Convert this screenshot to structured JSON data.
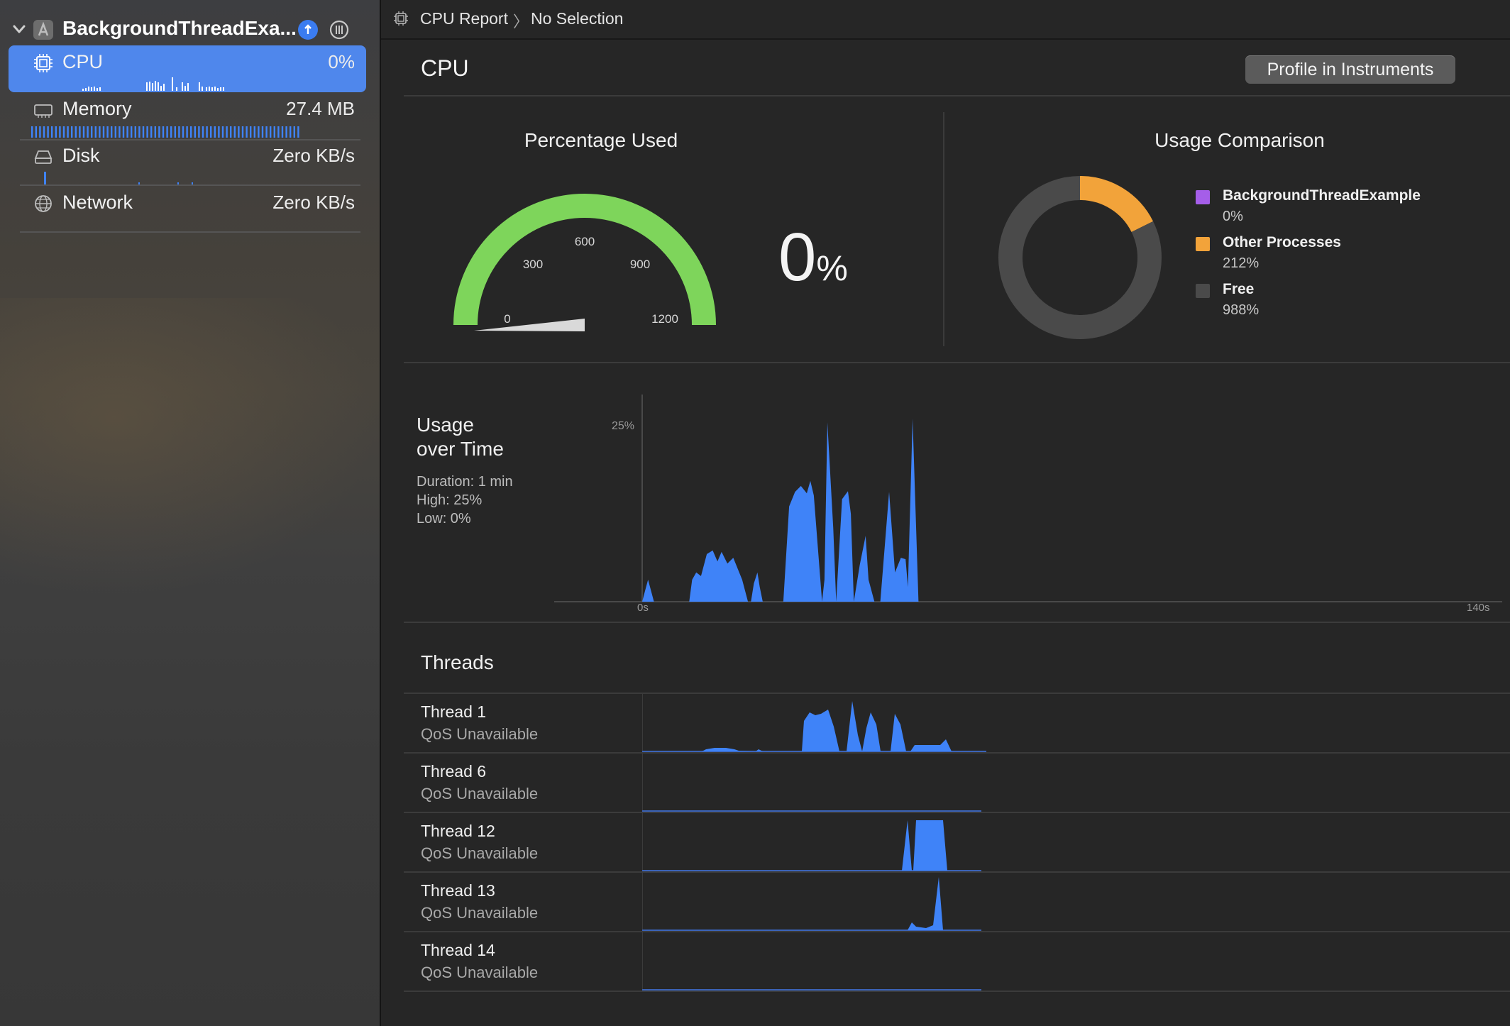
{
  "sidebar": {
    "project_name": "BackgroundThreadExa...",
    "project_icon": "xcode-app-icon",
    "gauges": [
      {
        "label": "CPU",
        "value": "0%",
        "icon": "cpu-icon",
        "selected": true
      },
      {
        "label": "Memory",
        "value": "27.4 MB",
        "icon": "memory-icon",
        "selected": false
      },
      {
        "label": "Disk",
        "value": "Zero KB/s",
        "icon": "disk-icon",
        "selected": false
      },
      {
        "label": "Network",
        "value": "Zero KB/s",
        "icon": "network-icon",
        "selected": false
      }
    ]
  },
  "breadcrumb": {
    "report": "CPU Report",
    "separator": "〉",
    "selection": "No Selection"
  },
  "header": {
    "title": "CPU",
    "profile_button": "Profile in Instruments"
  },
  "percentage_used": {
    "title": "Percentage Used",
    "ticks": [
      "0",
      "300",
      "600",
      "900",
      "1200"
    ],
    "value": "0",
    "unit": "%",
    "needle_value": 0,
    "max": 1200
  },
  "usage_comparison": {
    "title": "Usage Comparison",
    "legend": [
      {
        "name": "BackgroundThreadExample",
        "value": "0%",
        "color": "#a55ee9",
        "pct": 0
      },
      {
        "name": "Other Processes",
        "value": "212%",
        "color": "#f2a33a",
        "pct": 212
      },
      {
        "name": "Free",
        "value": "988%",
        "color": "#4a4a4a",
        "pct": 988
      }
    ]
  },
  "usage_over_time": {
    "title_line1": "Usage",
    "title_line2": "over Time",
    "duration": "Duration: 1 min",
    "high": "High: 25%",
    "low": "Low: 0%",
    "y_tick": "25%",
    "x_start": "0s",
    "x_end": "140s"
  },
  "chart_data": {
    "type": "area",
    "xlabel": "",
    "ylabel": "",
    "x_range": [
      0,
      140
    ],
    "ylim": [
      0,
      25
    ],
    "series": [
      {
        "x": [
          0,
          0.5,
          1,
          1.6,
          2,
          8,
          8.5,
          9.2,
          10,
          11,
          12,
          12.8,
          13.5,
          14.5,
          15.5,
          17,
          18,
          18.5,
          19,
          19.6,
          20,
          20.5,
          21,
          21.5,
          22,
          23,
          24,
          25,
          26,
          27,
          28,
          28.6,
          29.2,
          30.6,
          31,
          31.5,
          32.5,
          33,
          34,
          35,
          35.5,
          36,
          37,
          38,
          38.5,
          39.5,
          40.5,
          42,
          43,
          44,
          44.8,
          45.2,
          46,
          47
        ],
        "values": [
          0,
          1.5,
          3,
          1.2,
          0,
          0,
          3,
          4,
          3.5,
          6.5,
          7,
          5.5,
          6.8,
          5.2,
          6,
          3,
          0,
          0,
          2.5,
          4,
          2,
          0,
          0,
          0,
          0,
          0,
          0,
          13,
          15,
          15.8,
          14.8,
          16.5,
          14.5,
          0,
          3,
          24.5,
          10,
          0,
          14,
          15.1,
          12,
          0,
          5,
          9,
          3,
          0,
          0,
          15,
          4,
          6,
          5.8,
          2,
          25,
          0
        ]
      }
    ]
  },
  "threads": {
    "title": "Threads",
    "rows": [
      {
        "name": "Thread 1",
        "qos": "QoS Unavailable"
      },
      {
        "name": "Thread 6",
        "qos": "QoS Unavailable"
      },
      {
        "name": "Thread 12",
        "qos": "QoS Unavailable"
      },
      {
        "name": "Thread 13",
        "qos": "QoS Unavailable"
      },
      {
        "name": "Thread 14",
        "qos": "QoS Unavailable"
      }
    ]
  },
  "colors": {
    "accent": "#4f87ec",
    "chart_blue": "#3f83f8",
    "gauge_green": "#7ed55b"
  }
}
